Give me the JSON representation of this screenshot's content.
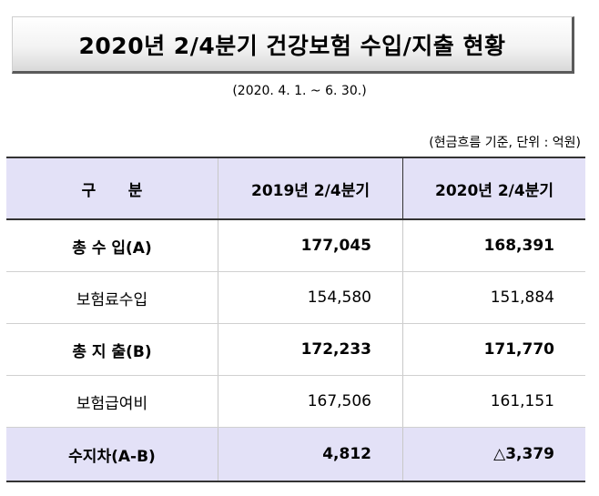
{
  "title": "2020년 2/4분기 건강보험 수입/지출 현황",
  "period": "(2020. 4. 1. ~ 6. 30.)",
  "unit_note": "(현금흐름 기준, 단위 : 억원)",
  "table": {
    "headers": [
      "구      분",
      "2019년 2/4분기",
      "2020년 2/4분기"
    ],
    "rows": [
      {
        "label": "총 수 입(A)",
        "v2019": "177,045",
        "v2020": "168,391"
      },
      {
        "label": "보험료수입",
        "v2019": "154,580",
        "v2020": "151,884"
      },
      {
        "label": "총 지 출(B)",
        "v2019": "172,233",
        "v2020": "171,770"
      },
      {
        "label": "보험급여비",
        "v2019": "167,506",
        "v2020": "161,151"
      },
      {
        "label": "수지차(A-B)",
        "v2019": "4,812",
        "v2020": "△3,379"
      }
    ]
  }
}
